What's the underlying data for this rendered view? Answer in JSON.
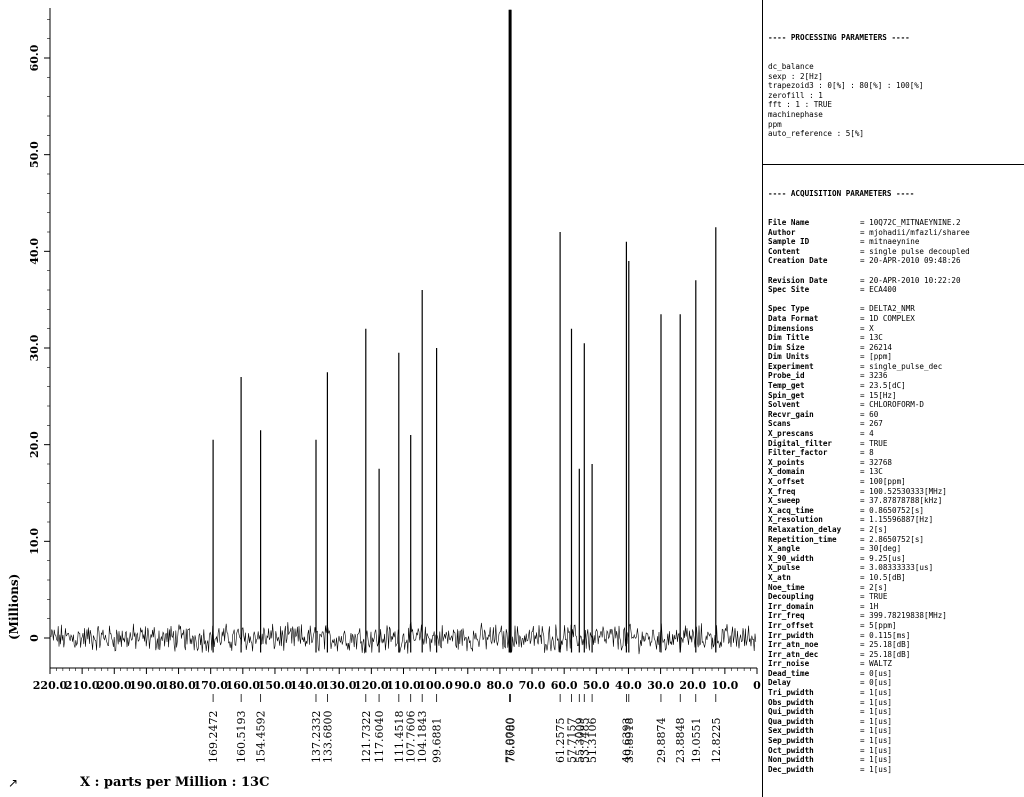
{
  "chart_data": {
    "type": "line",
    "nucleus": "13C",
    "xlabel": "X : parts per Million : 13C",
    "ylabel": "(Millions)",
    "xlim": [
      220,
      0
    ],
    "ylim": [
      -3,
      65
    ],
    "x_ticks": [
      220.0,
      210.0,
      200.0,
      190.0,
      180.0,
      170.0,
      160.0,
      150.0,
      140.0,
      130.0,
      120.0,
      110.0,
      100.0,
      90.0,
      80.0,
      70.0,
      60.0,
      50.0,
      40.0,
      30.0,
      20.0,
      10.0,
      0
    ],
    "x_tick_labels": [
      "220.0",
      "210.0",
      "200.0",
      "190.0",
      "180.0",
      "170.0",
      "160.0",
      "150.0",
      "140.0",
      "130.0",
      "120.0",
      "110.0",
      "100.0",
      "90.0",
      "80.0",
      "70.0",
      "60.0",
      "50.0",
      "40.0",
      "30.0",
      "20.0",
      "10.0",
      "0"
    ],
    "y_ticks": [
      0,
      10,
      20,
      30,
      40,
      50,
      60
    ],
    "y_tick_labels": [
      "0",
      "10.0",
      "20.0",
      "30.0",
      "40.0",
      "50.0",
      "60.0"
    ],
    "peaks": [
      {
        "ppm": 169.2472,
        "label": "169.2472",
        "height": 20.5
      },
      {
        "ppm": 160.5193,
        "label": "160.5193",
        "height": 27.0
      },
      {
        "ppm": 154.4592,
        "label": "154.4592",
        "height": 21.5
      },
      {
        "ppm": 137.2332,
        "label": "137.2332",
        "height": 20.5
      },
      {
        "ppm": 133.68,
        "label": "133.6800",
        "height": 27.5
      },
      {
        "ppm": 121.7322,
        "label": "121.7322",
        "height": 32.0
      },
      {
        "ppm": 117.604,
        "label": "117.6040",
        "height": 17.5
      },
      {
        "ppm": 111.4518,
        "label": "111.4518",
        "height": 29.5
      },
      {
        "ppm": 107.7606,
        "label": "107.7606",
        "height": 21.0
      },
      {
        "ppm": 104.1843,
        "label": "104.1843",
        "height": 36.0
      },
      {
        "ppm": 99.6881,
        "label": "99.6881",
        "height": 30.0
      },
      {
        "ppm": 77.0,
        "label": "77.0000",
        "height": 65.0
      },
      {
        "ppm": 76.678,
        "label": "76.6780",
        "height": 65.0
      },
      {
        "ppm": 61.2575,
        "label": "61.2575",
        "height": 42.0
      },
      {
        "ppm": 57.7157,
        "label": "57.7157",
        "height": 32.0
      },
      {
        "ppm": 55.3009,
        "label": "55.3009",
        "height": 17.5
      },
      {
        "ppm": 53.7485,
        "label": "53.7485",
        "height": 30.5
      },
      {
        "ppm": 51.3106,
        "label": "51.3106",
        "height": 18.0
      },
      {
        "ppm": 40.6393,
        "label": "40.6393",
        "height": 41.0
      },
      {
        "ppm": 39.8918,
        "label": "39.8918",
        "height": 39.0
      },
      {
        "ppm": 29.8874,
        "label": "29.8874",
        "height": 33.5
      },
      {
        "ppm": 23.8848,
        "label": "23.8848",
        "height": 33.5
      },
      {
        "ppm": 19.0551,
        "label": "19.0551",
        "height": 37.0
      },
      {
        "ppm": 12.8225,
        "label": "12.8225",
        "height": 42.5
      }
    ],
    "corner_mark": "↗"
  },
  "processing": {
    "header": "---- PROCESSING PARAMETERS ----",
    "lines": [
      "dc_balance",
      "sexp : 2[Hz]",
      "trapezoid3 : 0[%] : 80[%] : 100[%]",
      "zerofill : 1",
      "fft : 1 : TRUE",
      "machinephase",
      "ppm",
      "auto_reference : 5[%]"
    ]
  },
  "acquisition": {
    "header": "---- ACQUISITION PARAMETERS ----",
    "rows": [
      [
        "File Name",
        "= 10Q72C_MITNAEYNINE.2"
      ],
      [
        "Author",
        "= mjohadii/mfazli/sharee"
      ],
      [
        "Sample ID",
        "= mitnaeynine"
      ],
      [
        "Content",
        "= single pulse decoupled"
      ],
      [
        "Creation Date",
        "= 20-APR-2010 09:48:26"
      ],
      [
        "",
        ""
      ],
      [
        "Revision Date",
        "= 20-APR-2010 10:22:20"
      ],
      [
        "Spec Site",
        "= ECA400"
      ],
      [
        "",
        ""
      ],
      [
        "Spec Type",
        "= DELTA2_NMR"
      ],
      [
        "Data Format",
        "= 1D COMPLEX"
      ],
      [
        "Dimensions",
        "= X"
      ],
      [
        "Dim Title",
        "= 13C"
      ],
      [
        "Dim Size",
        "= 26214"
      ],
      [
        "Dim Units",
        "= [ppm]"
      ],
      [
        "Experiment",
        "= single_pulse_dec"
      ],
      [
        "Probe_id",
        "= 3236"
      ],
      [
        "Temp_get",
        "= 23.5[dC]"
      ],
      [
        "Spin_get",
        "= 15[Hz]"
      ],
      [
        "Solvent",
        "= CHLOROFORM-D"
      ],
      [
        "Recvr_gain",
        "= 60"
      ],
      [
        "Scans",
        "= 267"
      ],
      [
        "X_prescans",
        "= 4"
      ],
      [
        "Digital_filter",
        "= TRUE"
      ],
      [
        "Filter_factor",
        "= 8"
      ],
      [
        "X_points",
        "= 32768"
      ],
      [
        "X_domain",
        "= 13C"
      ],
      [
        "X_offset",
        "= 100[ppm]"
      ],
      [
        "X_freq",
        "= 100.52530333[MHz]"
      ],
      [
        "X_sweep",
        "= 37.87878788[kHz]"
      ],
      [
        "X_acq_time",
        "= 0.8650752[s]"
      ],
      [
        "X_resolution",
        "= 1.15596887[Hz]"
      ],
      [
        "Relaxation_delay",
        "= 2[s]"
      ],
      [
        "Repetition_time",
        "= 2.8650752[s]"
      ],
      [
        "X_angle",
        "= 30[deg]"
      ],
      [
        "X_90_width",
        "= 9.25[us]"
      ],
      [
        "X_pulse",
        "= 3.08333333[us]"
      ],
      [
        "X_atn",
        "= 10.5[dB]"
      ],
      [
        "Noe_time",
        "= 2[s]"
      ],
      [
        "Decoupling",
        "= TRUE"
      ],
      [
        "Irr_domain",
        "= 1H"
      ],
      [
        "Irr_freq",
        "= 399.78219838[MHz]"
      ],
      [
        "Irr_offset",
        "= 5[ppm]"
      ],
      [
        "Irr_pwidth",
        "= 0.115[ms]"
      ],
      [
        "Irr_atn_noe",
        "= 25.18[dB]"
      ],
      [
        "Irr_atn_dec",
        "= 25.18[dB]"
      ],
      [
        "Irr_noise",
        "= WALTZ"
      ],
      [
        "Dead_time",
        "= 0[us]"
      ],
      [
        "Delay",
        "= 0[us]"
      ],
      [
        "Tri_pwidth",
        "= 1[us]"
      ],
      [
        "Obs_pwidth",
        "= 1[us]"
      ],
      [
        "Qui_pwidth",
        "= 1[us]"
      ],
      [
        "Qua_pwidth",
        "= 1[us]"
      ],
      [
        "Sex_pwidth",
        "= 1[us]"
      ],
      [
        "Sep_pwidth",
        "= 1[us]"
      ],
      [
        "Oct_pwidth",
        "= 1[us]"
      ],
      [
        "Non_pwidth",
        "= 1[us]"
      ],
      [
        "Dec_pwidth",
        "= 1[us]"
      ]
    ]
  }
}
